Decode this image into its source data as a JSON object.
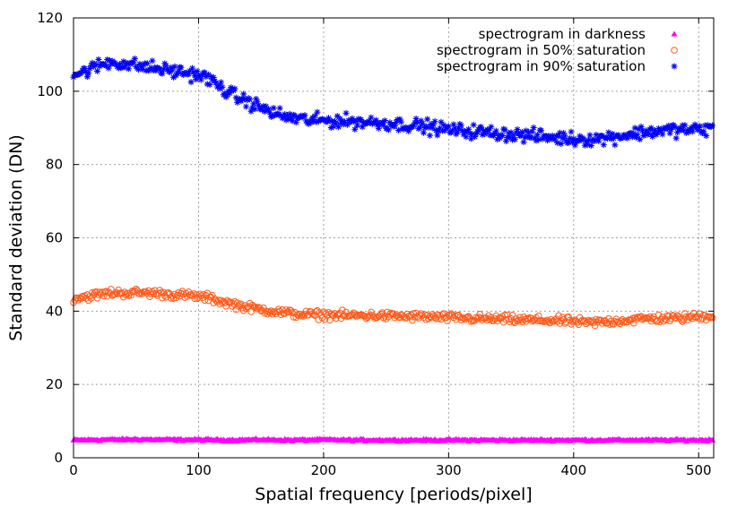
{
  "chart_data": {
    "type": "scatter",
    "title": "",
    "xlabel": "Spatial frequency [periods/pixel]",
    "ylabel": "Standard deviation (DN)",
    "xlim": [
      0,
      512
    ],
    "ylim": [
      0,
      120
    ],
    "xticks": [
      0,
      100,
      200,
      300,
      400,
      500
    ],
    "yticks": [
      0,
      20,
      40,
      60,
      80,
      100,
      120
    ],
    "grid": true,
    "legend_position": "top-right",
    "series": [
      {
        "name": "spectrogram in darkness",
        "marker": "triangle",
        "color": "#ff00ff",
        "x": [
          0,
          25,
          50,
          75,
          100,
          125,
          150,
          175,
          200,
          225,
          250,
          275,
          300,
          325,
          350,
          375,
          400,
          425,
          450,
          475,
          500,
          511
        ],
        "values": [
          4.8,
          4.9,
          5.0,
          4.9,
          4.9,
          4.8,
          4.9,
          4.8,
          4.9,
          4.8,
          4.8,
          4.8,
          4.8,
          4.8,
          4.8,
          4.8,
          4.8,
          4.8,
          4.8,
          4.8,
          4.8,
          4.8
        ]
      },
      {
        "name": "spectrogram in 50% saturation",
        "marker": "circle",
        "color": "#ff5a1a",
        "x": [
          0,
          10,
          20,
          30,
          40,
          50,
          60,
          70,
          80,
          90,
          100,
          110,
          120,
          130,
          140,
          150,
          160,
          170,
          180,
          190,
          200,
          220,
          240,
          260,
          280,
          300,
          320,
          340,
          360,
          380,
          400,
          410,
          420,
          440,
          460,
          480,
          500,
          511
        ],
        "values": [
          43.5,
          44.0,
          44.5,
          45.0,
          45.0,
          45.0,
          45.0,
          44.8,
          44.5,
          44.3,
          44.0,
          43.5,
          42.5,
          41.8,
          41.0,
          40.5,
          40.0,
          39.5,
          39.2,
          39.0,
          39.0,
          38.8,
          38.8,
          38.6,
          38.5,
          38.2,
          38.0,
          37.8,
          37.6,
          37.5,
          37.2,
          36.8,
          37.0,
          37.5,
          38.0,
          38.0,
          38.5,
          38.8
        ]
      },
      {
        "name": "spectrogram in 90% saturation",
        "marker": "asterisk",
        "color": "#0000ff",
        "x": [
          0,
          10,
          20,
          30,
          40,
          50,
          60,
          70,
          80,
          90,
          100,
          110,
          120,
          130,
          140,
          150,
          160,
          170,
          180,
          190,
          200,
          220,
          240,
          260,
          280,
          300,
          320,
          340,
          360,
          380,
          400,
          420,
          440,
          460,
          480,
          500,
          511
        ],
        "values": [
          104.5,
          105.5,
          107.0,
          108.0,
          107.5,
          107.0,
          106.5,
          106.0,
          105.5,
          105.0,
          104.5,
          103.0,
          100.5,
          98.5,
          97.0,
          95.5,
          94.0,
          93.0,
          92.5,
          92.0,
          92.0,
          91.8,
          91.5,
          91.0,
          90.5,
          89.5,
          89.0,
          88.5,
          88.0,
          87.5,
          87.0,
          87.0,
          88.0,
          89.0,
          89.5,
          89.5,
          90.0
        ]
      }
    ]
  }
}
